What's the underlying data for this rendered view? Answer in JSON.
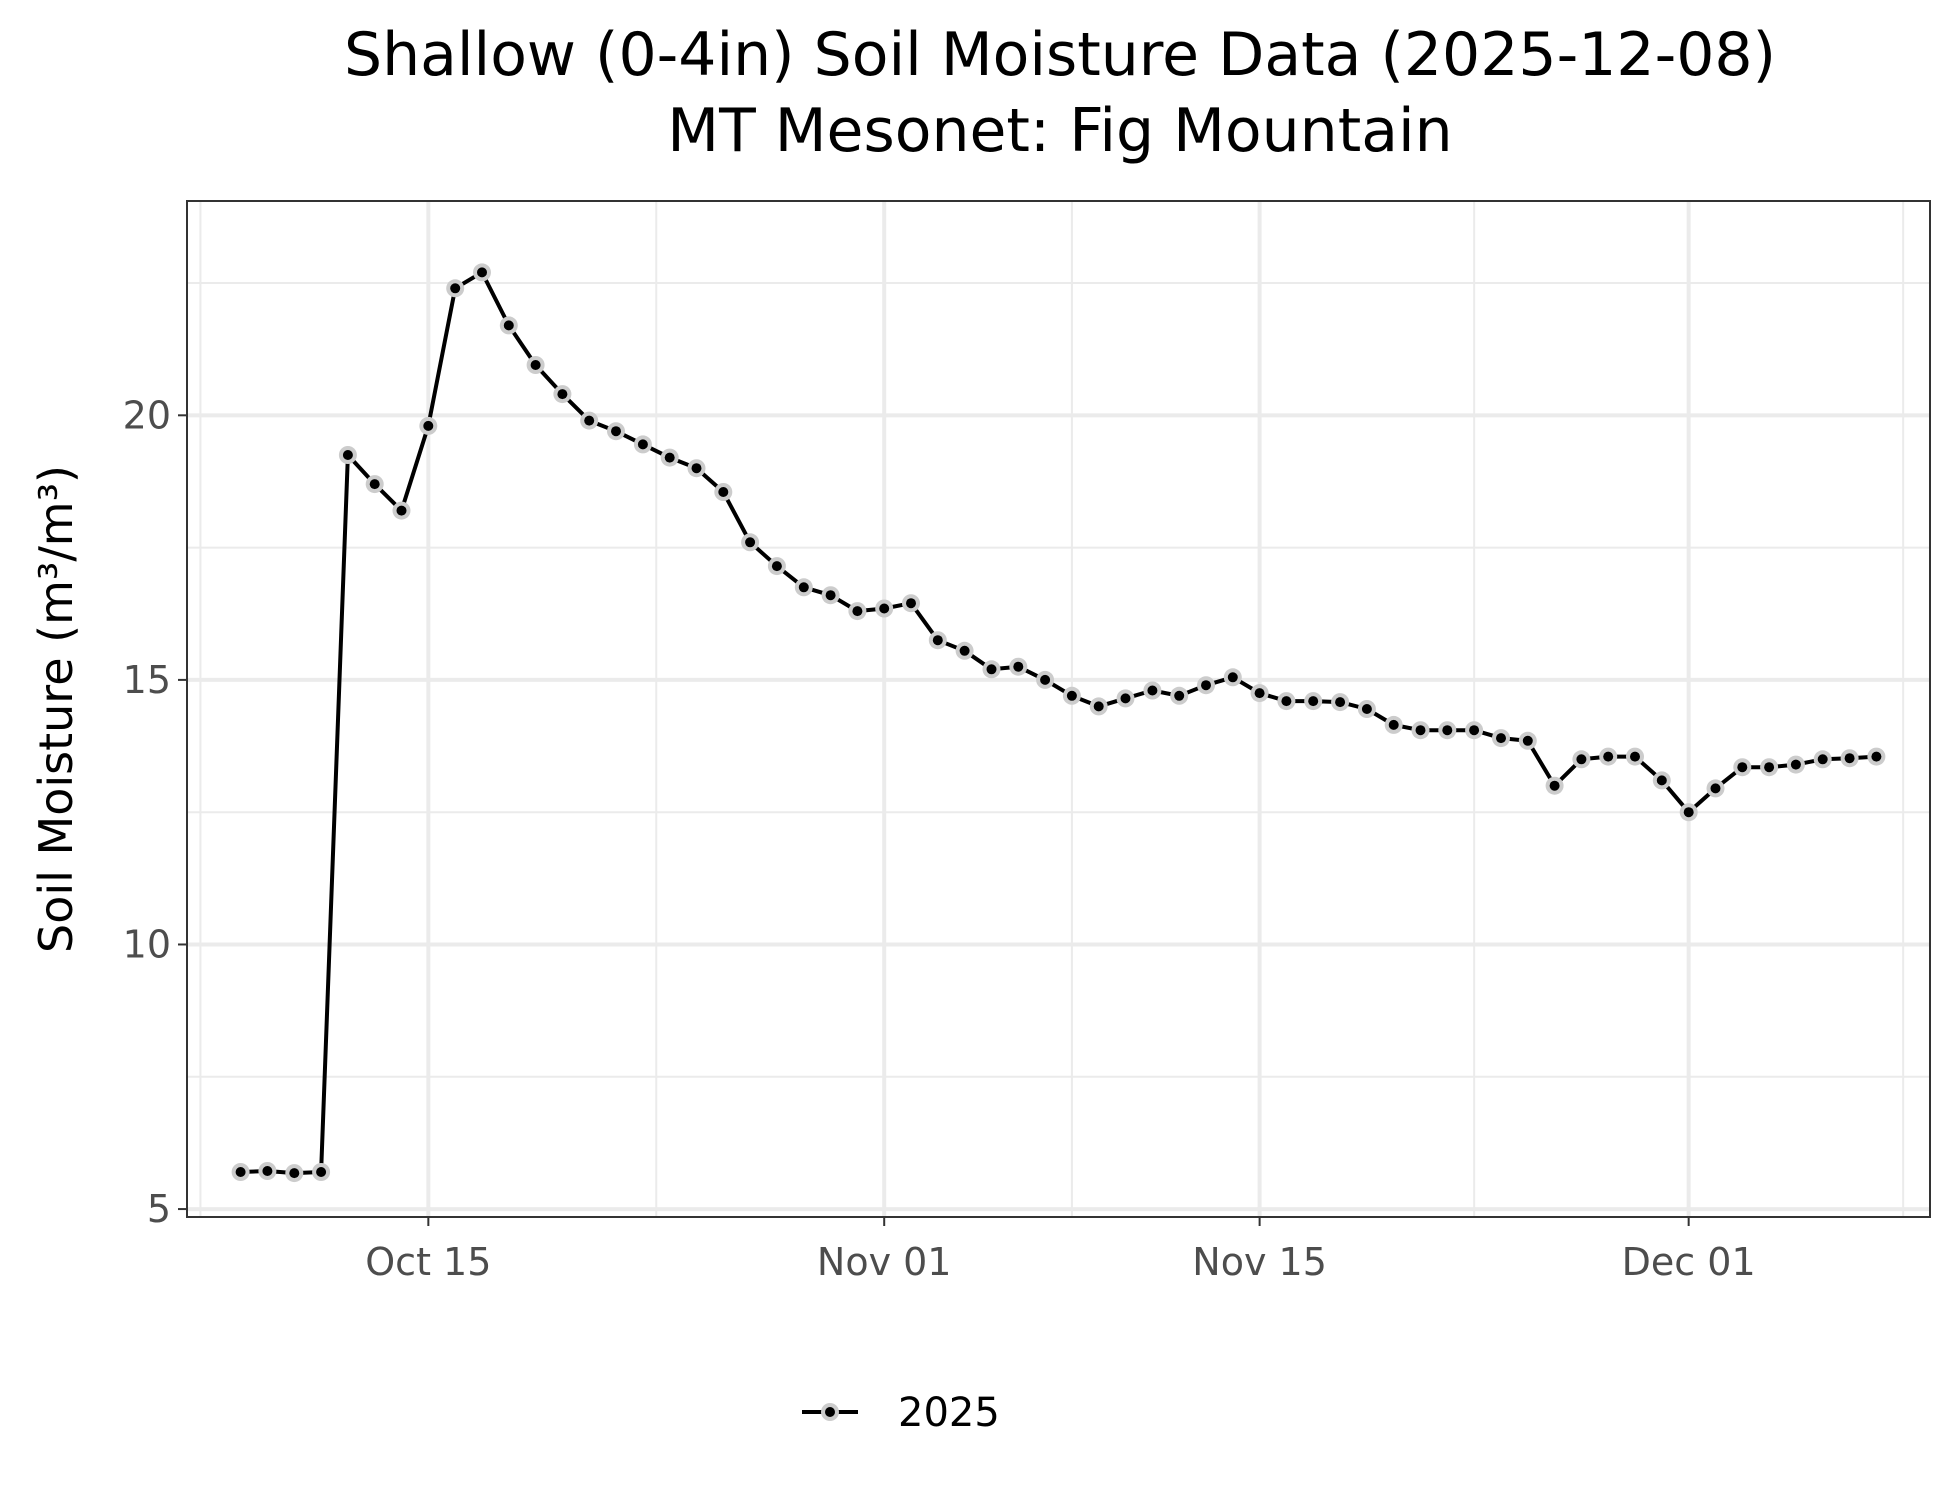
{
  "chart_data": {
    "type": "line",
    "title": "Shallow (0-4in) Soil Moisture Data (2025-12-08)",
    "subtitle": "MT Mesonet: Fig Mountain",
    "xlabel": "",
    "ylabel": "Soil Moisture (m³/m³)",
    "xlim": [
      "2025-10-06",
      "2025-12-10"
    ],
    "ylim": [
      4.85,
      24.05
    ],
    "x_ticks": [
      {
        "date": "2025-10-15",
        "label": "Oct 15"
      },
      {
        "date": "2025-11-01",
        "label": "Nov 01"
      },
      {
        "date": "2025-11-15",
        "label": "Nov 15"
      },
      {
        "date": "2025-12-01",
        "label": "Dec 01"
      }
    ],
    "y_ticks": [
      5,
      10,
      15,
      20
    ],
    "grid": true,
    "legend": {
      "position": "bottom",
      "entries": [
        "2025"
      ]
    },
    "series": [
      {
        "name": "2025",
        "color": "#000000",
        "halo_color": "#cccccc",
        "x": [
          "2025-10-08",
          "2025-10-09",
          "2025-10-10",
          "2025-10-11",
          "2025-10-12",
          "2025-10-13",
          "2025-10-14",
          "2025-10-15",
          "2025-10-16",
          "2025-10-17",
          "2025-10-18",
          "2025-10-19",
          "2025-10-20",
          "2025-10-21",
          "2025-10-22",
          "2025-10-23",
          "2025-10-24",
          "2025-10-25",
          "2025-10-26",
          "2025-10-27",
          "2025-10-28",
          "2025-10-29",
          "2025-10-30",
          "2025-10-31",
          "2025-11-01",
          "2025-11-02",
          "2025-11-03",
          "2025-11-04",
          "2025-11-05",
          "2025-11-06",
          "2025-11-07",
          "2025-11-08",
          "2025-11-09",
          "2025-11-10",
          "2025-11-11",
          "2025-11-12",
          "2025-11-13",
          "2025-11-14",
          "2025-11-15",
          "2025-11-16",
          "2025-11-17",
          "2025-11-18",
          "2025-11-19",
          "2025-11-20",
          "2025-11-21",
          "2025-11-22",
          "2025-11-23",
          "2025-11-24",
          "2025-11-25",
          "2025-11-26",
          "2025-11-27",
          "2025-11-28",
          "2025-11-29",
          "2025-11-30",
          "2025-12-01",
          "2025-12-02",
          "2025-12-03",
          "2025-12-04",
          "2025-12-05",
          "2025-12-06",
          "2025-12-07",
          "2025-12-08"
        ],
        "y": [
          5.7,
          5.72,
          5.68,
          5.7,
          19.25,
          18.7,
          18.2,
          19.8,
          22.4,
          22.7,
          21.7,
          20.95,
          20.4,
          19.9,
          19.7,
          19.45,
          19.2,
          19.0,
          18.55,
          17.6,
          17.15,
          16.75,
          16.6,
          16.3,
          16.35,
          16.45,
          15.75,
          15.55,
          15.2,
          15.25,
          15.0,
          14.7,
          14.5,
          14.65,
          14.8,
          14.7,
          14.9,
          15.05,
          14.75,
          14.6,
          14.6,
          14.58,
          14.45,
          14.15,
          14.05,
          14.05,
          14.05,
          13.9,
          13.85,
          13.0,
          13.5,
          13.55,
          13.55,
          13.1,
          12.5,
          12.95,
          13.35,
          13.35,
          13.4,
          13.5,
          13.52,
          13.55
        ]
      }
    ]
  }
}
